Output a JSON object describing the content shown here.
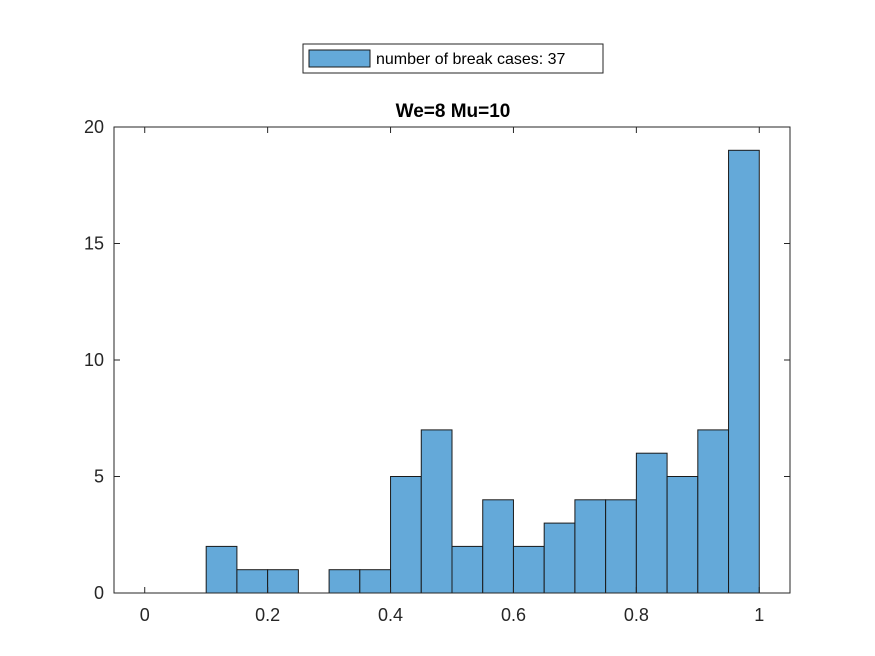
{
  "chart_data": {
    "type": "bar",
    "title": "We=8 Mu=10",
    "xlabel": "",
    "ylabel": "",
    "xlim": [
      -0.05,
      1.05
    ],
    "ylim": [
      0,
      20
    ],
    "bin_width": 0.05,
    "bin_edges": [
      0,
      0.05,
      0.1,
      0.15,
      0.2,
      0.25,
      0.3,
      0.35,
      0.4,
      0.45,
      0.5,
      0.55,
      0.6,
      0.65,
      0.7,
      0.75,
      0.8,
      0.85,
      0.9,
      0.95,
      1.0
    ],
    "values": [
      0,
      0,
      2,
      1,
      1,
      0,
      1,
      1,
      5,
      7,
      2,
      4,
      2,
      3,
      4,
      4,
      6,
      5,
      7,
      19
    ],
    "x_ticks": [
      0,
      0.2,
      0.4,
      0.6,
      0.8,
      1
    ],
    "x_tick_labels": [
      "0",
      "0.2",
      "0.4",
      "0.6",
      "0.8",
      "1"
    ],
    "y_ticks": [
      0,
      5,
      10,
      15,
      20
    ],
    "y_tick_labels": [
      "0",
      "5",
      "10",
      "15",
      "20"
    ],
    "grid": false,
    "legend": {
      "position": "top-center-outside",
      "entries": [
        "number of break cases: 37"
      ]
    },
    "colors": {
      "bar_fill": "#64a9d9",
      "bar_edge": "#1a1a1a",
      "axis": "#262626"
    }
  }
}
